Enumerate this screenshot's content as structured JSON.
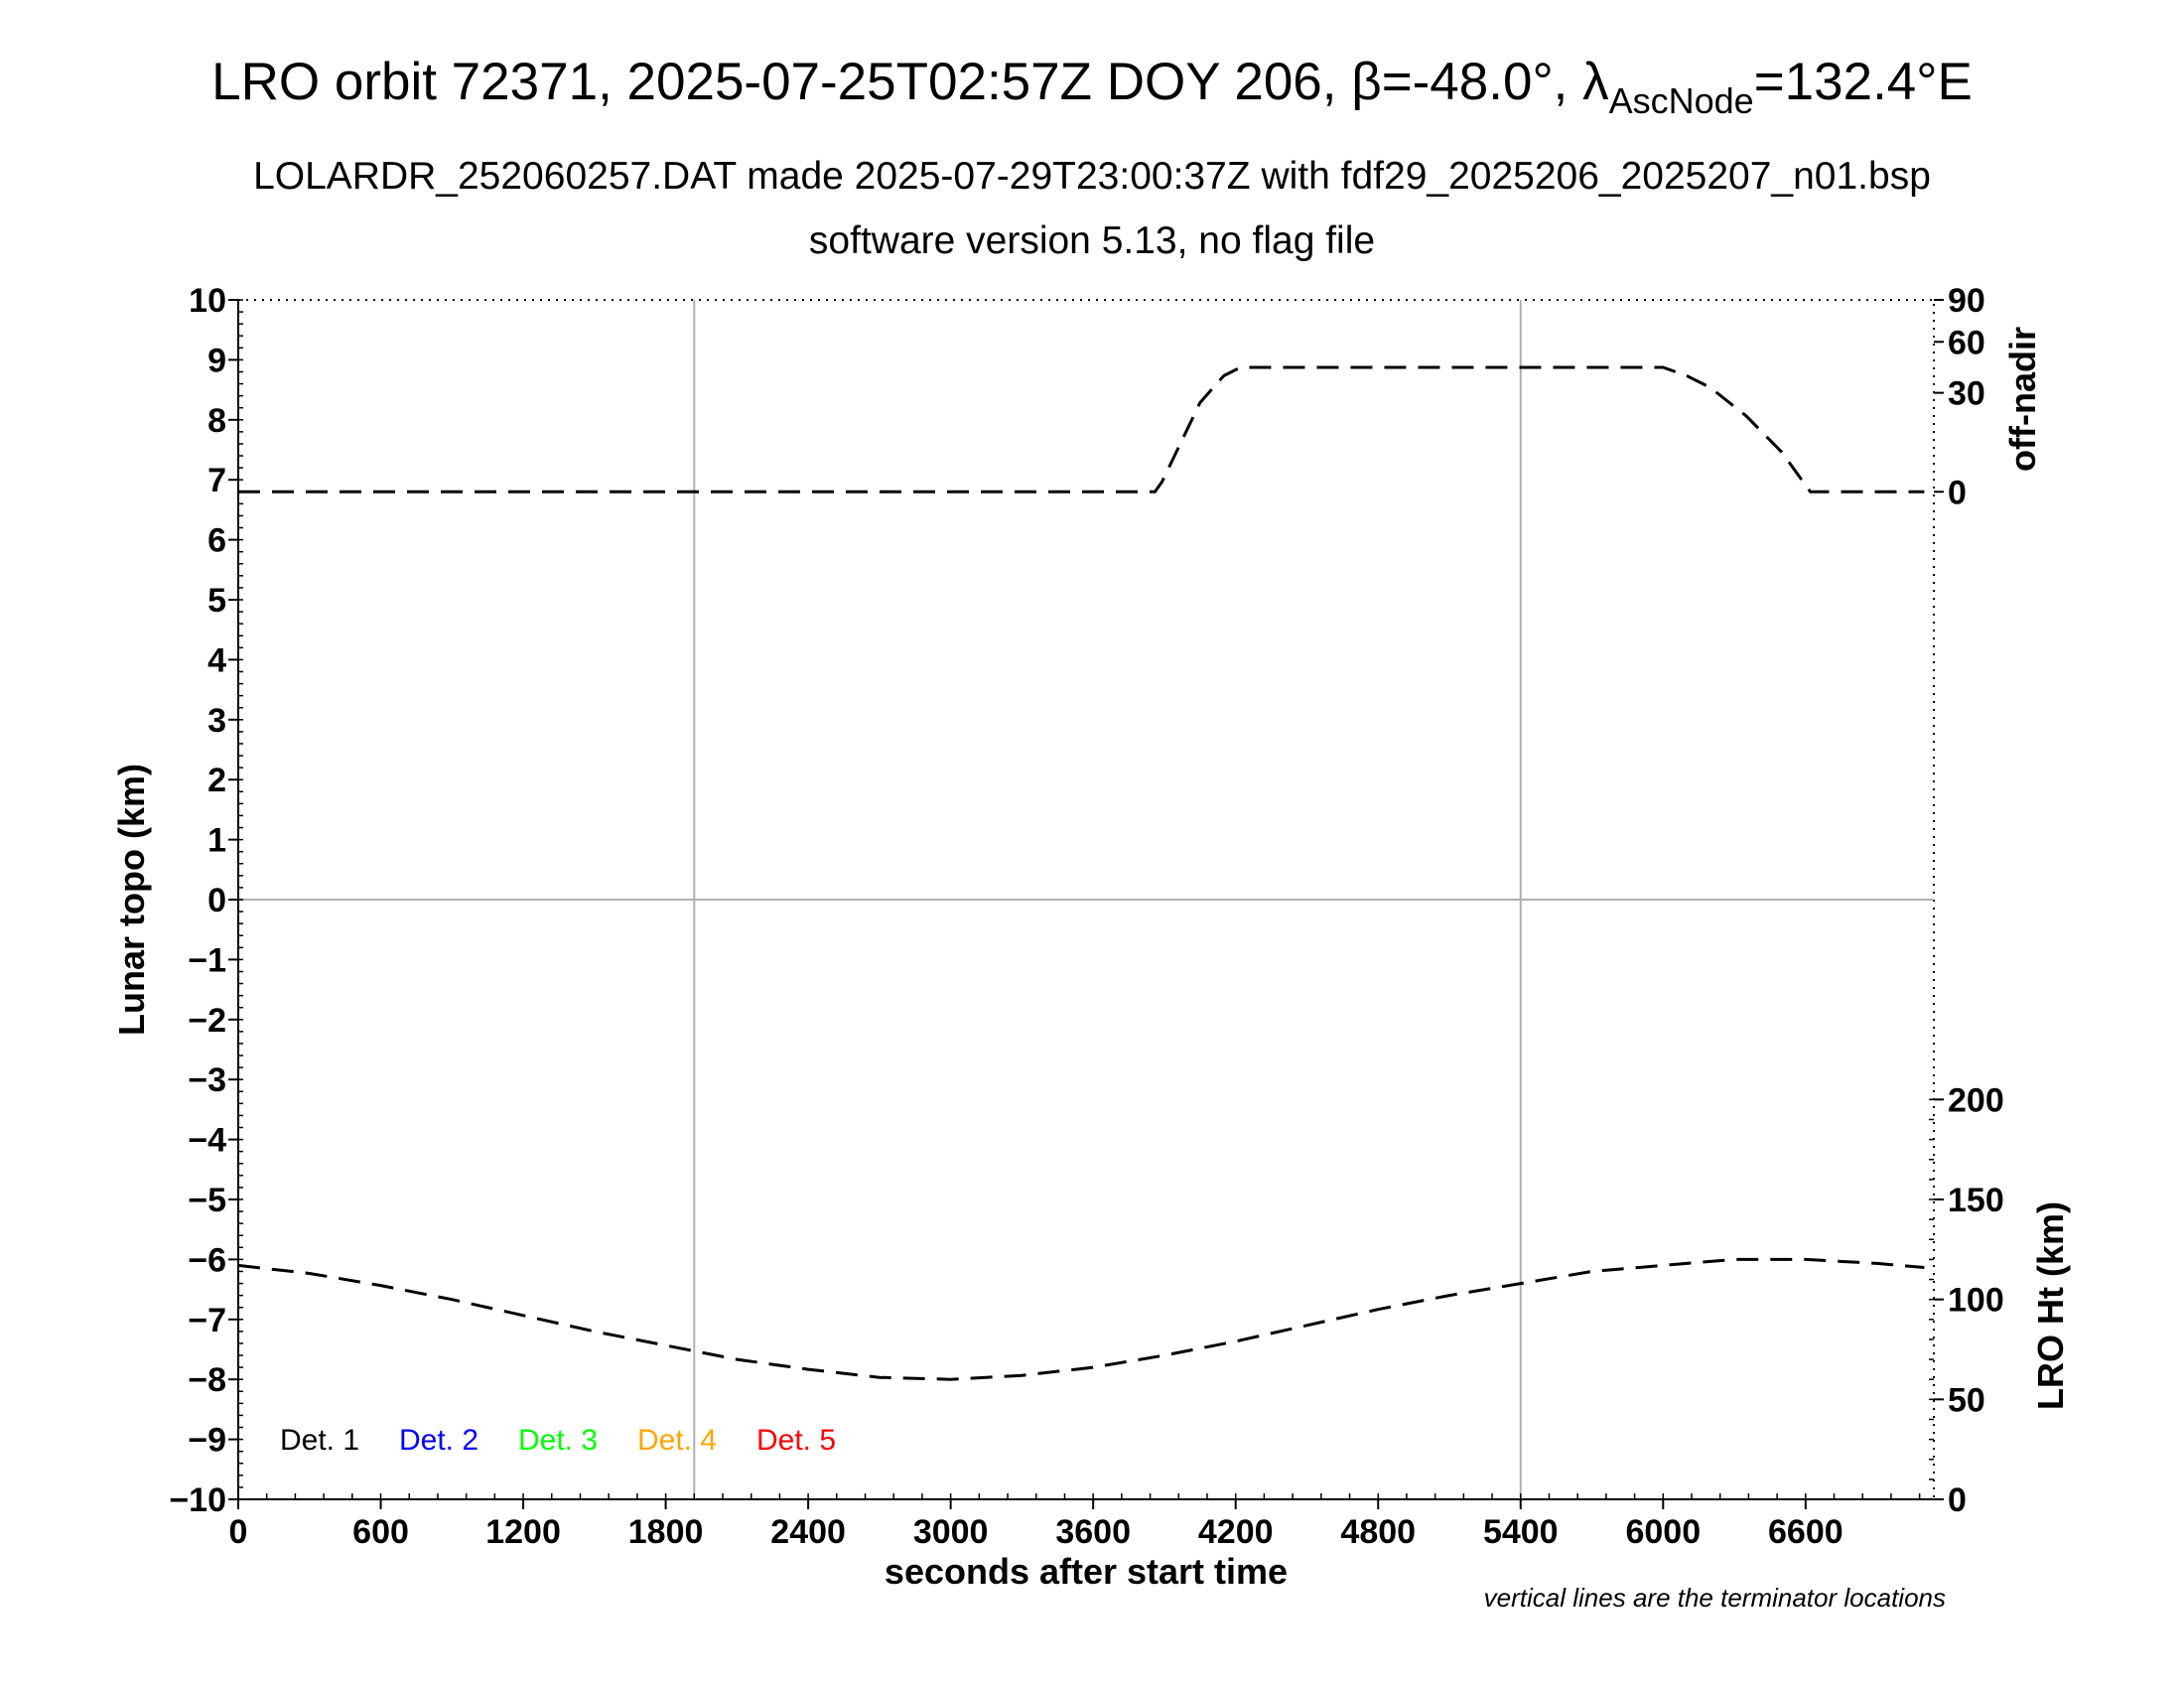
{
  "header": {
    "title_main": "LRO orbit 72371, 2025-07-25T02:57Z DOY 206, β=-48.0°, λ",
    "title_sub": "AscNode",
    "title_end": "=132.4°E",
    "subtitle1": "LOLARDR_252060257.DAT made 2025-07-29T23:00:37Z with fdf29_2025206_2025207_n01.bsp",
    "subtitle2": "software version 5.13, no flag file"
  },
  "chart_data": {
    "type": "line",
    "xlabel": "seconds after start time",
    "ylabel": "Lunar topo (km)",
    "y2label_top": "off-nadir",
    "y2label_bottom": "LRO Ht (km)",
    "note": "vertical lines are the terminator locations",
    "xlim": [
      0,
      7140
    ],
    "ylim": [
      -10,
      10
    ],
    "x_ticks": [
      "0",
      "600",
      "1200",
      "1800",
      "2400",
      "3000",
      "3600",
      "4200",
      "4800",
      "5400",
      "6000",
      "6600"
    ],
    "x_tick_values": [
      0,
      600,
      1200,
      1800,
      2400,
      3000,
      3600,
      4200,
      4800,
      5400,
      6000,
      6600
    ],
    "y_ticks": [
      "10",
      "9",
      "8",
      "7",
      "6",
      "5",
      "4",
      "3",
      "2",
      "1",
      "0",
      "−1",
      "−2",
      "−3",
      "−4",
      "−5",
      "−6",
      "−7",
      "−8",
      "−9",
      "−10"
    ],
    "y_tick_values": [
      10,
      9,
      8,
      7,
      6,
      5,
      4,
      3,
      2,
      1,
      0,
      -1,
      -2,
      -3,
      -4,
      -5,
      -6,
      -7,
      -8,
      -9,
      -10
    ],
    "offnadir_ticks": [
      "90",
      "60",
      "30",
      "0"
    ],
    "offnadir_tick_values": [
      90,
      60,
      30,
      0
    ],
    "ht_ticks": [
      "200",
      "150",
      "100",
      "50",
      "0"
    ],
    "ht_tick_values": [
      200,
      150,
      100,
      50,
      0
    ],
    "terminator_x": [
      1920,
      5400
    ],
    "grid": "zero line and terminator lines only",
    "legend": [
      {
        "label": "Det. 1",
        "color": "#000000"
      },
      {
        "label": "Det. 2",
        "color": "#0000ff"
      },
      {
        "label": "Det. 3",
        "color": "#00ff00"
      },
      {
        "label": "Det. 4",
        "color": "#ffa500"
      },
      {
        "label": "Det. 5",
        "color": "#ff0000"
      }
    ],
    "legend_position": "bottom-left",
    "series": [
      {
        "axis": "off-nadir (top right)",
        "style": "dashed",
        "x": [
          0,
          1800,
          3600,
          3860,
          3890,
          3950,
          4050,
          4150,
          4220,
          5000,
          6000,
          6100,
          6200,
          6350,
          6500,
          6580,
          6620,
          6650,
          7100
        ],
        "y": [
          0,
          0,
          0,
          0,
          3,
          12,
          27,
          40,
          45,
          45,
          45,
          40,
          33,
          23,
          12,
          4,
          0,
          0,
          0
        ]
      },
      {
        "axis": "LRO Ht (km) (bottom right)",
        "style": "dashed",
        "x": [
          0,
          300,
          600,
          900,
          1200,
          1500,
          1800,
          2100,
          2400,
          2700,
          3000,
          3300,
          3600,
          3900,
          4200,
          4500,
          4800,
          5100,
          5400,
          5700,
          6000,
          6300,
          6600,
          6900,
          7100
        ],
        "y": [
          117,
          113,
          107,
          100,
          92,
          84,
          77,
          70,
          65,
          61,
          60,
          62,
          66,
          72,
          79,
          87,
          95,
          102,
          108,
          114,
          117,
          120,
          120,
          118,
          116
        ]
      }
    ]
  }
}
